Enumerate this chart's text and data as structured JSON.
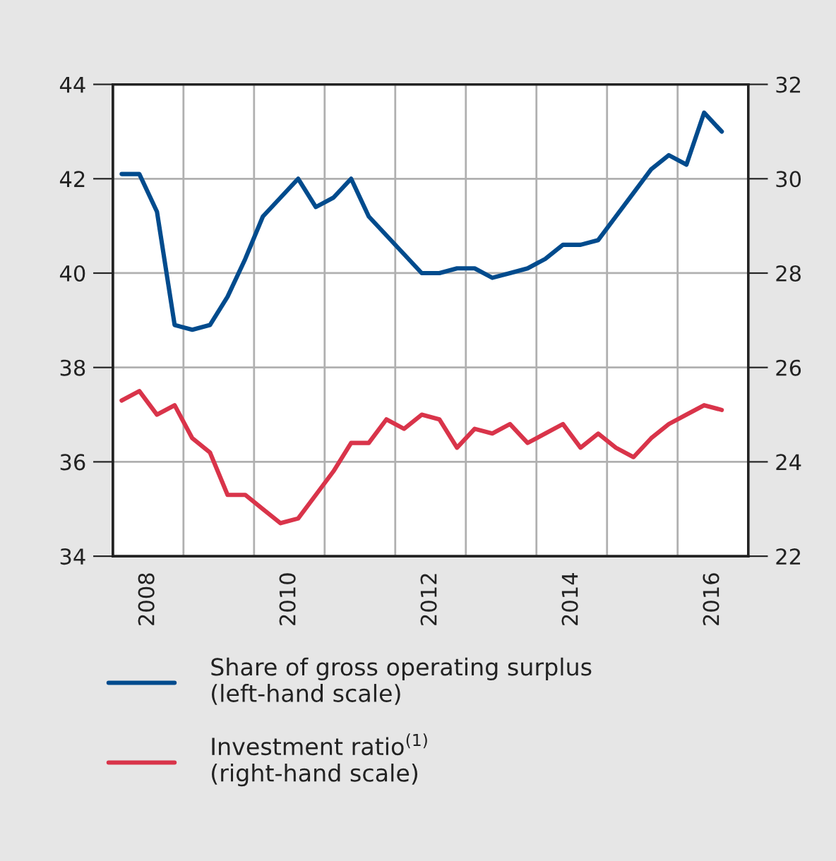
{
  "chart_data": {
    "type": "line",
    "x": [
      2008.125,
      2008.375,
      2008.625,
      2008.875,
      2009.125,
      2009.375,
      2009.625,
      2009.875,
      2010.125,
      2010.375,
      2010.625,
      2010.875,
      2011.125,
      2011.375,
      2011.625,
      2011.875,
      2012.125,
      2012.375,
      2012.625,
      2012.875,
      2013.125,
      2013.375,
      2013.625,
      2013.875,
      2014.125,
      2014.375,
      2014.625,
      2014.875,
      2015.125,
      2015.375,
      2015.625,
      2015.875,
      2016.125,
      2016.375,
      2016.625
    ],
    "series": [
      {
        "name": "Share of gross operating surplus\n(left-hand scale)",
        "color": "#004b8d",
        "values": [
          42.1,
          42.1,
          41.3,
          38.9,
          38.8,
          38.9,
          39.5,
          40.3,
          41.2,
          41.6,
          42.0,
          41.4,
          41.6,
          42.0,
          41.2,
          40.8,
          40.4,
          40.0,
          40.0,
          40.1,
          40.1,
          39.9,
          40.0,
          40.1,
          40.3,
          40.6,
          40.6,
          40.7,
          41.2,
          41.7,
          42.2,
          42.5,
          42.3,
          43.4,
          43.0
        ]
      },
      {
        "name": "Investment ratio$^{(1)}$\n(right-hand scale)",
        "color": "#d9344a",
        "axis": "y2",
        "values": [
          25.3,
          25.5,
          25.0,
          25.2,
          24.5,
          24.2,
          23.3,
          23.3,
          23.0,
          22.7,
          22.8,
          23.3,
          23.8,
          24.4,
          24.4,
          24.9,
          24.7,
          25.0,
          24.9,
          24.3,
          24.7,
          24.6,
          24.8,
          24.4,
          24.6,
          24.8,
          24.3,
          24.6,
          24.3,
          24.1,
          24.5,
          24.8,
          25.0,
          25.2,
          25.1
        ]
      }
    ],
    "xlim": [
      2008,
      2017
    ],
    "xticks": [
      {
        "value": 2008,
        "label": null
      },
      {
        "value": 2009,
        "label": null
      },
      {
        "value": 2010,
        "label": null
      },
      {
        "value": 2011,
        "label": null
      },
      {
        "value": 2012,
        "label": null
      },
      {
        "value": 2013,
        "label": null
      },
      {
        "value": 2014,
        "label": null
      },
      {
        "value": 2015,
        "label": null
      },
      {
        "value": 2016,
        "label": null
      },
      {
        "value": 2017,
        "label": null
      },
      {
        "value": 2008.5,
        "label": "2008"
      },
      {
        "value": 2010.5,
        "label": "2010"
      },
      {
        "value": 2012.5,
        "label": "2012"
      },
      {
        "value": 2014.5,
        "label": "2014"
      },
      {
        "value": 2016.5,
        "label": "2016"
      }
    ],
    "ylim": [
      34,
      44
    ],
    "yticks": [
      34,
      36,
      38,
      40,
      42,
      44
    ],
    "y2lim": [
      22,
      32
    ],
    "y2ticks": [
      22,
      24,
      26,
      28,
      30,
      32
    ],
    "grid": true,
    "legend": "bottom",
    "marker": "none",
    "line_style": "solid"
  }
}
